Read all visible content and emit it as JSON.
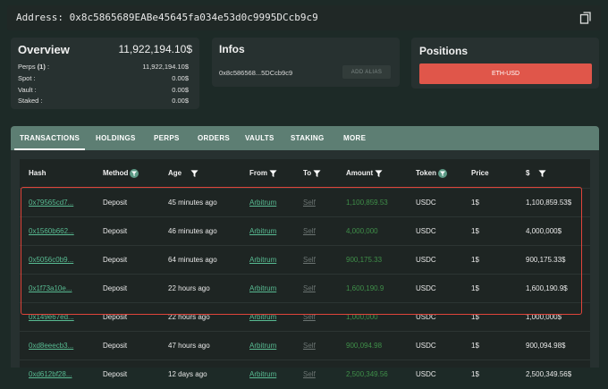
{
  "address_bar": {
    "label": "Address:",
    "address": "0x8c5865689EABe45645fa034e53d0c9995DCcb9c9"
  },
  "overview": {
    "title": "Overview",
    "total": "11,922,194.10$",
    "rows": [
      {
        "label_pre": "Perps ",
        "label_bold": "(1)",
        "label_post": " :",
        "value": "11,922,194.10$"
      },
      {
        "label_pre": "Spot :",
        "label_bold": "",
        "label_post": "",
        "value": "0.00$"
      },
      {
        "label_pre": "Vault :",
        "label_bold": "",
        "label_post": "",
        "value": "0.00$"
      },
      {
        "label_pre": "Staked :",
        "label_bold": "",
        "label_post": "",
        "value": "0.00$"
      }
    ]
  },
  "infos": {
    "title": "Infos",
    "short_address": "0x8c586568...5DCcb9c9",
    "alias_button": "ADD ALIAS"
  },
  "positions": {
    "title": "Positions",
    "items": [
      {
        "label": "ETH-USD",
        "color": "#e0564a"
      }
    ]
  },
  "tabs": [
    "TRANSACTIONS",
    "HOLDINGS",
    "PERPS",
    "ORDERS",
    "VAULTS",
    "STAKING",
    "MORE"
  ],
  "active_tab": "TRANSACTIONS",
  "table": {
    "columns": [
      "Hash",
      "Method",
      "Age",
      "From",
      "To",
      "Amount",
      "Token",
      "Price",
      "$"
    ],
    "rows": [
      {
        "hash": "0x79565cd7...",
        "method": "Deposit",
        "age": "45 minutes ago",
        "from": "Arbitrum",
        "to": "Self",
        "amount": "1,100,859.53",
        "token": "USDC",
        "price": "1$",
        "usd": "1,100,859.53$"
      },
      {
        "hash": "0x1560b662...",
        "method": "Deposit",
        "age": "46 minutes ago",
        "from": "Arbitrum",
        "to": "Self",
        "amount": "4,000,000",
        "token": "USDC",
        "price": "1$",
        "usd": "4,000,000$"
      },
      {
        "hash": "0x5056c0b9...",
        "method": "Deposit",
        "age": "64 minutes ago",
        "from": "Arbitrum",
        "to": "Self",
        "amount": "900,175.33",
        "token": "USDC",
        "price": "1$",
        "usd": "900,175.33$"
      },
      {
        "hash": "0x1f73a10e...",
        "method": "Deposit",
        "age": "22 hours ago",
        "from": "Arbitrum",
        "to": "Self",
        "amount": "1,600,190.9",
        "token": "USDC",
        "price": "1$",
        "usd": "1,600,190.9$"
      },
      {
        "hash": "0x149e67ed...",
        "method": "Deposit",
        "age": "22 hours ago",
        "from": "Arbitrum",
        "to": "Self",
        "amount": "1,000,000",
        "token": "USDC",
        "price": "1$",
        "usd": "1,000,000$"
      },
      {
        "hash": "0xd8eeecb3...",
        "method": "Deposit",
        "age": "47 hours ago",
        "from": "Arbitrum",
        "to": "Self",
        "amount": "900,094.98",
        "token": "USDC",
        "price": "1$",
        "usd": "900,094.98$"
      },
      {
        "hash": "0xd612bf28...",
        "method": "Deposit",
        "age": "12 days ago",
        "from": "Arbitrum",
        "to": "Self",
        "amount": "2,500,349.56",
        "token": "USDC",
        "price": "1$",
        "usd": "2,500,349.56$"
      }
    ],
    "highlighted_rows": 5,
    "highlight_color": "#e0443a"
  },
  "colors": {
    "background": "#1d2a27",
    "tab_bar": "#5d7e73",
    "link": "#58bb92",
    "amount": "#3f8f49"
  },
  "icons": {
    "copy": "copy-icon",
    "filter": "filter-icon",
    "filter_active": "filter-active-icon"
  }
}
